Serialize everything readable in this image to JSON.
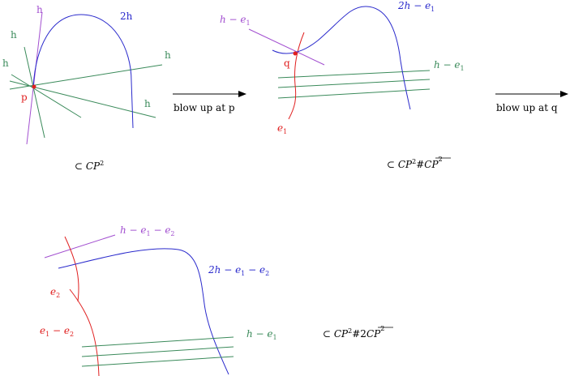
{
  "colors": {
    "green": "#3a8a5a",
    "purple": "#a24fd0",
    "blue": "#2a2acc",
    "red": "#e02020",
    "black": "#000000"
  },
  "panel1": {
    "label_h_purple": "h",
    "label_2h": "2h",
    "label_h_left_top": "h",
    "label_h_left_mid": "h",
    "label_h_right_top": "h",
    "label_h_right_bottom": "h",
    "label_p": "p",
    "caption_prefix": "⊂ ",
    "caption_space": "CP",
    "caption_exp": "2"
  },
  "arrow1": {
    "label": "blow up at p"
  },
  "panel2": {
    "label_h_e1_purple": {
      "a": "h",
      "op": " − ",
      "b": "e",
      "sub": "1"
    },
    "label_2h_e1": {
      "a": "2h",
      "op": " − ",
      "b": "e",
      "sub": "1"
    },
    "label_h_e1_green": {
      "a": "h",
      "op": " − ",
      "b": "e",
      "sub": "1"
    },
    "label_q": "q",
    "label_e1": {
      "b": "e",
      "sub": "1"
    },
    "caption_prefix": "⊂ ",
    "caption_space": "CP",
    "caption_exp": "2",
    "caption_hash": "#",
    "caption_bar_space": "CP",
    "caption_bar_exp": "2"
  },
  "arrow2": {
    "label": "blow up at q"
  },
  "panel3": {
    "label_h_e1_e2": {
      "a": "h",
      "op1": " − ",
      "b": "e",
      "sub1": "1",
      "op2": " − ",
      "c": "e",
      "sub2": "2"
    },
    "label_2h_e1_e2": {
      "a": "2h",
      "op1": " − ",
      "b": "e",
      "sub1": "1",
      "op2": " − ",
      "c": "e",
      "sub2": "2"
    },
    "label_e2": {
      "b": "e",
      "sub": "2"
    },
    "label_e1_e2": {
      "b": "e",
      "sub1": "1",
      "op": " − ",
      "c": "e",
      "sub2": "2"
    },
    "label_h_e1": {
      "a": "h",
      "op": " − ",
      "b": "e",
      "sub": "1"
    },
    "caption_prefix": "⊂ ",
    "caption_space": "CP",
    "caption_exp": "2",
    "caption_hash": "#",
    "caption_coef": "2",
    "caption_bar_space": "CP",
    "caption_bar_exp": "2"
  }
}
